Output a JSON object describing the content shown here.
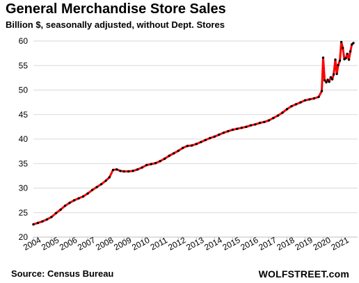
{
  "header": {
    "title": "General Merchandise Store Sales",
    "subtitle": "Billion $, seasonally adjusted, without Dept. Stores"
  },
  "footer": {
    "source": "Source: Census Bureau",
    "brand": "WOLFSTREET.com"
  },
  "colors": {
    "series_line": "#ff0000",
    "markers": "#000000",
    "grid": "#d9d9d9"
  },
  "chart_data": {
    "type": "line",
    "title": "General Merchandise Store Sales",
    "subtitle": "Billion $, seasonally adjusted, without Dept. Stores",
    "xlabel": "",
    "ylabel": "",
    "xlim": [
      2004,
      2021.9
    ],
    "ylim": [
      20,
      61
    ],
    "grid": "horizontal",
    "legend": "none",
    "x_ticks": [
      2004,
      2005,
      2006,
      2007,
      2008,
      2009,
      2010,
      2011,
      2012,
      2013,
      2014,
      2015,
      2016,
      2017,
      2018,
      2019,
      2020,
      2021
    ],
    "x_tick_labels": [
      "2004",
      "2005",
      "2006",
      "2007",
      "2008",
      "2009",
      "2010",
      "2011",
      "2012",
      "2013",
      "2014",
      "2015",
      "2016",
      "2017",
      "2018",
      "2019",
      "2020",
      "2021"
    ],
    "y_ticks": [
      20,
      25,
      30,
      35,
      40,
      45,
      50,
      55,
      60
    ],
    "y_tick_labels": [
      "20",
      "25",
      "30",
      "35",
      "40",
      "45",
      "50",
      "55",
      "60"
    ],
    "series": [
      {
        "x": [
          2004.0,
          2004.25,
          2004.5,
          2004.75,
          2005.0,
          2005.25,
          2005.5,
          2005.75,
          2006.0,
          2006.25,
          2006.5,
          2006.75,
          2007.0,
          2007.25,
          2007.5,
          2007.75,
          2008.0,
          2008.2,
          2008.4,
          2008.6,
          2008.8,
          2009.0,
          2009.25,
          2009.5,
          2009.75,
          2010.0,
          2010.25,
          2010.5,
          2010.75,
          2011.0,
          2011.25,
          2011.5,
          2011.75,
          2012.0,
          2012.25,
          2012.5,
          2012.75,
          2013.0,
          2013.25,
          2013.5,
          2013.75,
          2014.0,
          2014.25,
          2014.5,
          2014.75,
          2015.0,
          2015.25,
          2015.5,
          2015.75,
          2016.0,
          2016.25,
          2016.5,
          2016.75,
          2017.0,
          2017.25,
          2017.5,
          2017.75,
          2018.0,
          2018.25,
          2018.5,
          2018.75,
          2019.0,
          2019.25,
          2019.5,
          2019.75,
          2019.92,
          2020.0,
          2020.08,
          2020.17,
          2020.25,
          2020.33,
          2020.42,
          2020.5,
          2020.58,
          2020.67,
          2020.75,
          2020.83,
          2020.92,
          2021.0,
          2021.08,
          2021.17,
          2021.25,
          2021.33,
          2021.42,
          2021.5,
          2021.58,
          2021.67
        ],
        "y": [
          22.6,
          22.9,
          23.2,
          23.6,
          24.1,
          24.9,
          25.6,
          26.4,
          27.0,
          27.5,
          27.9,
          28.3,
          28.9,
          29.6,
          30.2,
          30.8,
          31.5,
          32.2,
          33.7,
          33.8,
          33.5,
          33.4,
          33.4,
          33.5,
          33.8,
          34.2,
          34.7,
          34.9,
          35.1,
          35.5,
          36.0,
          36.6,
          37.1,
          37.6,
          38.2,
          38.6,
          38.7,
          39.0,
          39.4,
          39.8,
          40.2,
          40.5,
          40.9,
          41.3,
          41.6,
          41.9,
          42.1,
          42.3,
          42.5,
          42.8,
          43.0,
          43.3,
          43.5,
          43.8,
          44.3,
          44.8,
          45.4,
          46.1,
          46.7,
          47.1,
          47.5,
          47.9,
          48.1,
          48.3,
          48.6,
          49.8,
          56.6,
          52.0,
          51.6,
          52.1,
          51.7,
          52.6,
          52.2,
          53.2,
          56.2,
          53.3,
          55.1,
          56.0,
          59.8,
          58.6,
          56.3,
          56.5,
          57.4,
          56.2,
          57.9,
          59.3,
          59.6
        ]
      }
    ]
  }
}
